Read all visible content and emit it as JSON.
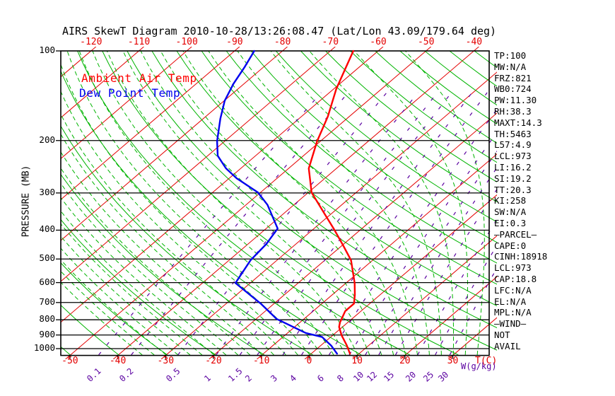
{
  "title": "AIRS SkewT Diagram 2010-10-28/13:26:08.47 (Lat/Lon 43.09/179.64 deg)",
  "legend": {
    "ambient_label": "Ambient Air Temp",
    "dewpoint_label": "Dew Point Temp"
  },
  "axes": {
    "pressure_axis_title": "PRESSURE (MB)",
    "pressure_ticks": [
      100,
      200,
      300,
      400,
      500,
      600,
      700,
      800,
      900,
      1000
    ],
    "top_temp_ticks": [
      -120,
      -110,
      -100,
      -90,
      -80,
      -70,
      -60,
      -50,
      -40
    ],
    "bottom_temp_ticks": [
      -50,
      -40,
      -30,
      -20,
      -10,
      0,
      10,
      20,
      30
    ],
    "temp_unit_label": "T(C)",
    "mixing_unit_label": "W(g/kg)",
    "mixing_ratio_ticks": [
      0.1,
      0.2,
      0.5,
      1,
      1.5,
      2,
      3,
      4,
      6,
      8,
      10,
      12,
      15,
      20,
      25,
      30
    ]
  },
  "stats_panel": {
    "lines": [
      "TP:100",
      "MW:N/A",
      "FRZ:821",
      "WB0:724",
      "PW:11.30",
      "RH:38.3",
      "MAXT:14.3",
      "TH:5463",
      "L57:4.9",
      "LCL:973",
      "LI:16.2",
      "SI:19.2",
      "TT:20.3",
      "KI:258",
      "SW:N/A",
      "EI:0.3",
      "–PARCEL–",
      "CAPE:0",
      "CINH:18918",
      "LCL:973",
      "CAP:18.8",
      "LFC:N/A",
      "EL:N/A",
      "MPL:N/A",
      "–WIND–",
      "NOT",
      "AVAIL"
    ]
  },
  "colors": {
    "isotherm": "#e40000",
    "dry_adiabat": "#00b400",
    "moist_adiabat": "#00b400",
    "mixing_ratio": "#5a00a0",
    "pressure_line": "#000000",
    "ambient_curve": "#ff0000",
    "dewpoint_curve": "#0000ee",
    "frame": "#000000"
  },
  "chart_data": {
    "type": "line",
    "diagram": "skew-t-log-p",
    "title": "AIRS SkewT Diagram 2010-10-28/13:26:08.47 (Lat/Lon 43.09/179.64 deg)",
    "pressure_axis": {
      "scale": "log",
      "range_mb": [
        100,
        1050
      ],
      "labeled_levels_mb": [
        100,
        200,
        300,
        400,
        500,
        600,
        700,
        800,
        900,
        1000
      ]
    },
    "temperature_axis": {
      "unit": "C",
      "isotherm_min": -120,
      "isotherm_max": 30,
      "isotherm_step": 10,
      "skew": "top labels -120..-40, bottom labels -50..30"
    },
    "background_lines": {
      "dry_adiabats_theta_k": {
        "min": 220,
        "max": 450,
        "step": 10
      },
      "moist_adiabats_surface_temp_c": {
        "min": -35,
        "max": 35,
        "step": 2.5
      },
      "mixing_ratio_g_kg": [
        0.1,
        0.2,
        0.5,
        1,
        1.5,
        2,
        3,
        4,
        6,
        8,
        10,
        12,
        15,
        20,
        25,
        30
      ]
    },
    "series": [
      {
        "name": "Ambient Air Temp",
        "color": "#ff0000",
        "points_p_t": [
          [
            100,
            -65.2
          ],
          [
            134,
            -59.5
          ],
          [
            166,
            -54.5
          ],
          [
            201,
            -50.7
          ],
          [
            248,
            -45.8
          ],
          [
            299,
            -39.3
          ],
          [
            354,
            -31.2
          ],
          [
            395,
            -25.9
          ],
          [
            450,
            -19.8
          ],
          [
            505,
            -14.5
          ],
          [
            602,
            -8.2
          ],
          [
            659,
            -5.3
          ],
          [
            706,
            -3.3
          ],
          [
            748,
            -3.3
          ],
          [
            818,
            -1.6
          ],
          [
            846,
            -0.7
          ],
          [
            903,
            1.9
          ],
          [
            973,
            5.3
          ],
          [
            1040,
            8.1
          ]
        ]
      },
      {
        "name": "Dew Point Temp",
        "color": "#0000ee",
        "points_p_t": [
          [
            100,
            -85.9
          ],
          [
            113,
            -84.0
          ],
          [
            129,
            -82.2
          ],
          [
            147,
            -79.9
          ],
          [
            169,
            -76.4
          ],
          [
            201,
            -71.6
          ],
          [
            225,
            -67.9
          ],
          [
            248,
            -63.1
          ],
          [
            268,
            -58.4
          ],
          [
            299,
            -50.5
          ],
          [
            329,
            -45.5
          ],
          [
            395,
            -37.6
          ],
          [
            445,
            -36.2
          ],
          [
            505,
            -35.5
          ],
          [
            602,
            -33.1
          ],
          [
            706,
            -22.8
          ],
          [
            795,
            -15.7
          ],
          [
            886,
            -6.2
          ],
          [
            914,
            -1.8
          ],
          [
            977,
            2.2
          ],
          [
            1040,
            5.4
          ]
        ]
      }
    ],
    "legend_position": "upper-left inside plot",
    "grid": "isotherms, dry adiabats, moist adiabats, mixing-ratio lines, horizontal pressure lines"
  }
}
